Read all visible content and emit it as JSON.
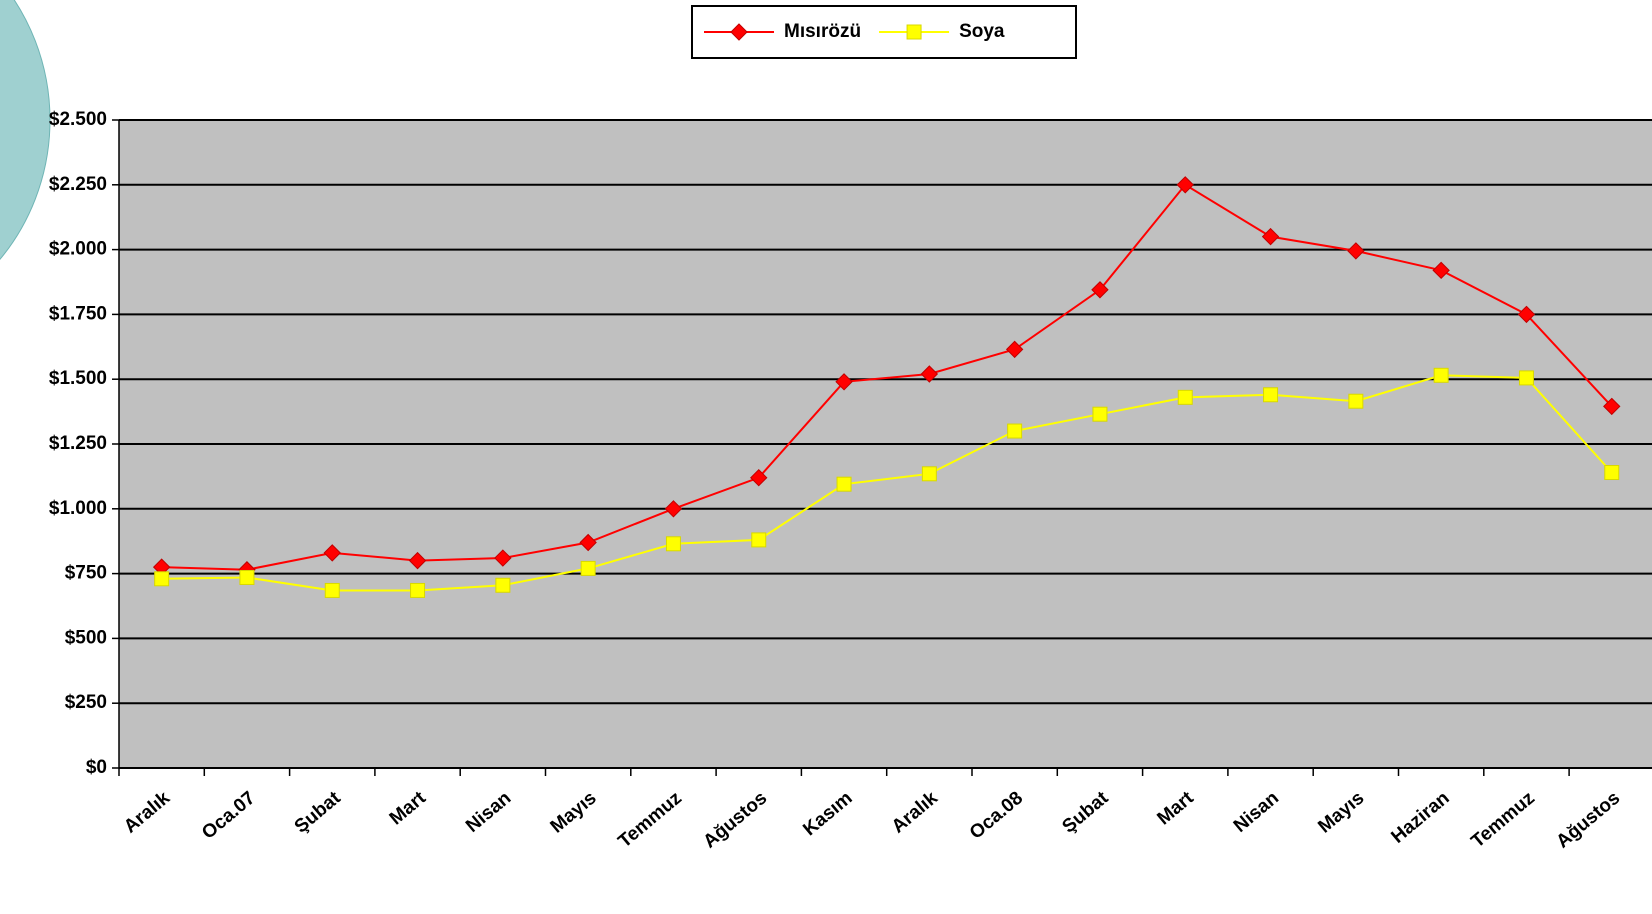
{
  "chart_data": {
    "type": "line",
    "categories": [
      "Aralık",
      "Oca.07",
      "Şubat",
      "Mart",
      "Nisan",
      "Mayıs",
      "Temmuz",
      "Ağustos",
      "Kasım",
      "Aralık",
      "Oca.08",
      "Şubat",
      "Mart",
      "Nisan",
      "Mayıs",
      "Haziran",
      "Temmuz",
      "Ağustos"
    ],
    "series": [
      {
        "name": "Mısırözü",
        "color": "#ff0000",
        "marker": "diamond",
        "values": [
          775,
          765,
          830,
          800,
          810,
          870,
          1000,
          1120,
          1490,
          1520,
          1615,
          1845,
          2250,
          2050,
          1995,
          1920,
          1750,
          1395
        ]
      },
      {
        "name": "Soya",
        "color": "#ffff00",
        "marker": "square",
        "values": [
          730,
          735,
          685,
          685,
          705,
          770,
          865,
          880,
          1095,
          1135,
          1300,
          1365,
          1430,
          1440,
          1415,
          1515,
          1505,
          1140
        ]
      }
    ],
    "ylim": [
      0,
      2500
    ],
    "yticks": [
      {
        "value": 0,
        "label": "$0"
      },
      {
        "value": 250,
        "label": "$250"
      },
      {
        "value": 500,
        "label": "$500"
      },
      {
        "value": 750,
        "label": "$750"
      },
      {
        "value": 1000,
        "label": "$1.000"
      },
      {
        "value": 1250,
        "label": "$1.250"
      },
      {
        "value": 1500,
        "label": "$1.500"
      },
      {
        "value": 1750,
        "label": "$1.750"
      },
      {
        "value": 2000,
        "label": "$2.000"
      },
      {
        "value": 2250,
        "label": "$2.250"
      },
      {
        "value": 2500,
        "label": "$2.500"
      }
    ],
    "grid": true,
    "legend": "top",
    "plot_background": "#c0c0c0"
  }
}
